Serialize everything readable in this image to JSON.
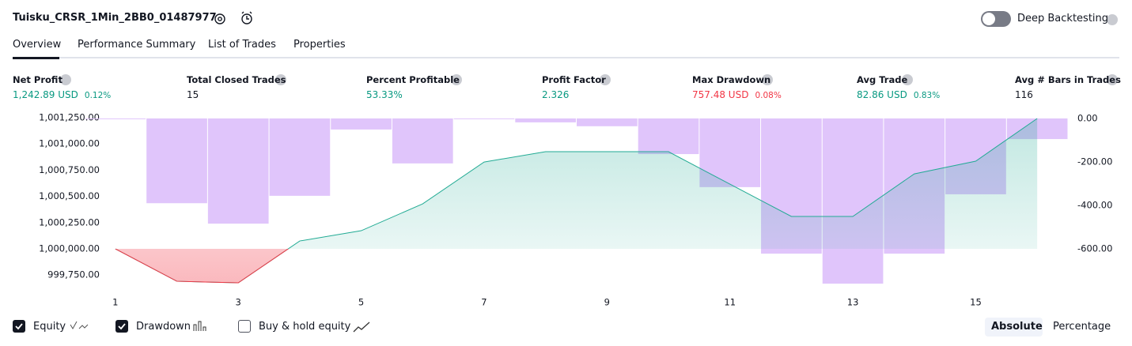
{
  "header": {
    "title": "Tuisku_CRSR_1Min_2BB0_01487977",
    "deep_backtesting": "Deep Backtesting"
  },
  "tabs": [
    "Overview",
    "Performance Summary",
    "List of Trades",
    "Properties"
  ],
  "metrics": [
    {
      "label": "Net Profit",
      "value": "1,242.89 USD",
      "sub": "0.12%",
      "tone": "pos"
    },
    {
      "label": "Total Closed Trades",
      "value": "15",
      "tone": "neutral"
    },
    {
      "label": "Percent Profitable",
      "value": "53.33%",
      "tone": "pos"
    },
    {
      "label": "Profit Factor",
      "value": "2.326",
      "tone": "pos"
    },
    {
      "label": "Max Drawdown",
      "value": "757.48 USD",
      "sub": "0.08%",
      "tone": "neg"
    },
    {
      "label": "Avg Trade",
      "value": "82.86 USD",
      "sub": "0.83%",
      "tone": "pos"
    },
    {
      "label": "Avg # Bars in Trades",
      "value": "116",
      "tone": "neutral"
    }
  ],
  "chart_data": {
    "type": "line",
    "x": [
      1,
      2,
      3,
      4,
      5,
      6,
      7,
      8,
      9,
      10,
      11,
      12,
      13,
      14,
      15,
      16
    ],
    "xlim": [
      0.5,
      16.5
    ],
    "xticks": [
      1,
      3,
      5,
      7,
      9,
      11,
      13,
      15
    ],
    "ylim": [
      999571,
      1001318
    ],
    "yticks": [
      {
        "value": 1001250,
        "label": "1,001,250.00"
      },
      {
        "value": 1001000,
        "label": "1,001,000.00"
      },
      {
        "value": 1000750,
        "label": "1,000,750.00"
      },
      {
        "value": 1000500,
        "label": "1,000,500.00"
      },
      {
        "value": 1000250,
        "label": "1,000,250.00"
      },
      {
        "value": 1000000,
        "label": "1,000,000.00"
      },
      {
        "value": 999750,
        "label": "999,750.00"
      }
    ],
    "y2lim": [
      -807,
      36
    ],
    "y2ticks": [
      {
        "value": 0,
        "label": "0.00"
      },
      {
        "value": -200,
        "label": "-200.00"
      },
      {
        "value": -400,
        "label": "-400.00"
      },
      {
        "value": -600,
        "label": "-600.00"
      }
    ],
    "series": [
      {
        "name": "Equity",
        "color": "#22ab94",
        "negative_color": "#f23645",
        "axis": "y",
        "visible": true,
        "values": [
          1000000,
          999691,
          999676,
          1000075,
          1000173,
          1000429,
          1000828,
          1000926,
          1000926,
          1000926,
          1000617,
          1000309,
          1000309,
          1000715,
          1000836,
          1001242.89
        ]
      },
      {
        "name": "Drawdown",
        "type": "bar",
        "color": "#ddbffb",
        "axis": "y2",
        "visible": true,
        "values": [
          -1,
          -390,
          -484,
          -356,
          -51,
          -207,
          -3,
          -18,
          -36,
          -164,
          -316,
          -622,
          -760,
          -622,
          -349,
          -95
        ]
      }
    ]
  },
  "buy_hold": {
    "label": "Buy & hold equity",
    "checked": false
  },
  "scale_modes": [
    "Absolute",
    "Percentage"
  ]
}
